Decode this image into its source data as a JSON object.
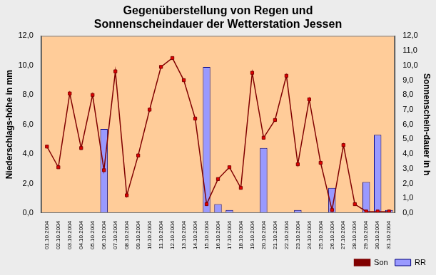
{
  "chart_data": {
    "type": "bar",
    "title": [
      "Gegenüberstellung von Regen und",
      "Sonnenscheindauer der Wetterstation Jessen"
    ],
    "y_label": "Niederschlags-höhe in mm",
    "y2_label": "Sonnenschein-dauer in h",
    "categories": [
      "01.10.2004",
      "02.10.2004",
      "03.10.2004",
      "04.10.2004",
      "05.10.2004",
      "06.10.2004",
      "07.10.2004",
      "08.10.2004",
      "09.10.2004",
      "10.10.2004",
      "11.10.2004",
      "12.10.2004",
      "13.10.2004",
      "14.10.2004",
      "15.10.2004",
      "16.10.2004",
      "17.10.2004",
      "18.10.2004",
      "19.10.2004",
      "20.10.2004",
      "21.10.2004",
      "22.10.2004",
      "23.10.2004",
      "24.10.2004",
      "25.10.2004",
      "26.10.2004",
      "27.10.2004",
      "28.10.2004",
      "29.10.2004",
      "30.10.2004",
      "31.10.2004"
    ],
    "series": [
      {
        "name": "RR",
        "type": "bar",
        "color": "#9999FF",
        "values": [
          0,
          0,
          0,
          0,
          0,
          5.7,
          0,
          0,
          0,
          0,
          0,
          0,
          0,
          0,
          9.9,
          0.6,
          0.2,
          0,
          0,
          4.4,
          0,
          0,
          0.2,
          0,
          0,
          1.7,
          0,
          0,
          2.1,
          5.3,
          0.2
        ]
      },
      {
        "name": "Son",
        "type": "line",
        "axis": "y2",
        "color": "#800000",
        "marker": "square",
        "line_style": "solid",
        "values": [
          4.5,
          3.1,
          8.1,
          4.4,
          8.0,
          2.9,
          9.6,
          1.2,
          3.9,
          7.0,
          9.9,
          10.5,
          9.0,
          6.4,
          0.6,
          2.3,
          3.1,
          1.7,
          9.5,
          5.1,
          6.3,
          9.3,
          3.3,
          7.7,
          3.4,
          0.2,
          4.6,
          0.6,
          0.1,
          0.1,
          0.1
        ]
      }
    ],
    "ylim": [
      0,
      12
    ],
    "yticks": [
      {
        "value": 0,
        "label": "0,0"
      },
      {
        "value": 2,
        "label": "2,0"
      },
      {
        "value": 4,
        "label": "4,0"
      },
      {
        "value": 6,
        "label": "6,0"
      },
      {
        "value": 8,
        "label": "8,0"
      },
      {
        "value": 10,
        "label": "10,0"
      },
      {
        "value": 12,
        "label": "12,0"
      }
    ],
    "y2lim": [
      0,
      12
    ],
    "y2ticks": [
      {
        "value": 0,
        "label": "0,0"
      },
      {
        "value": 1,
        "label": "1,0"
      },
      {
        "value": 2,
        "label": "2,0"
      },
      {
        "value": 3,
        "label": "3,0"
      },
      {
        "value": 4,
        "label": "4,0"
      },
      {
        "value": 5,
        "label": "5,0"
      },
      {
        "value": 6,
        "label": "6,0"
      },
      {
        "value": 7,
        "label": "7,0"
      },
      {
        "value": 8,
        "label": "8,0"
      },
      {
        "value": 9,
        "label": "9,0"
      },
      {
        "value": 10,
        "label": "10,0"
      },
      {
        "value": 11,
        "label": "11,0"
      },
      {
        "value": 12,
        "label": "12,0"
      }
    ],
    "grid": false,
    "legend": "lower right"
  }
}
